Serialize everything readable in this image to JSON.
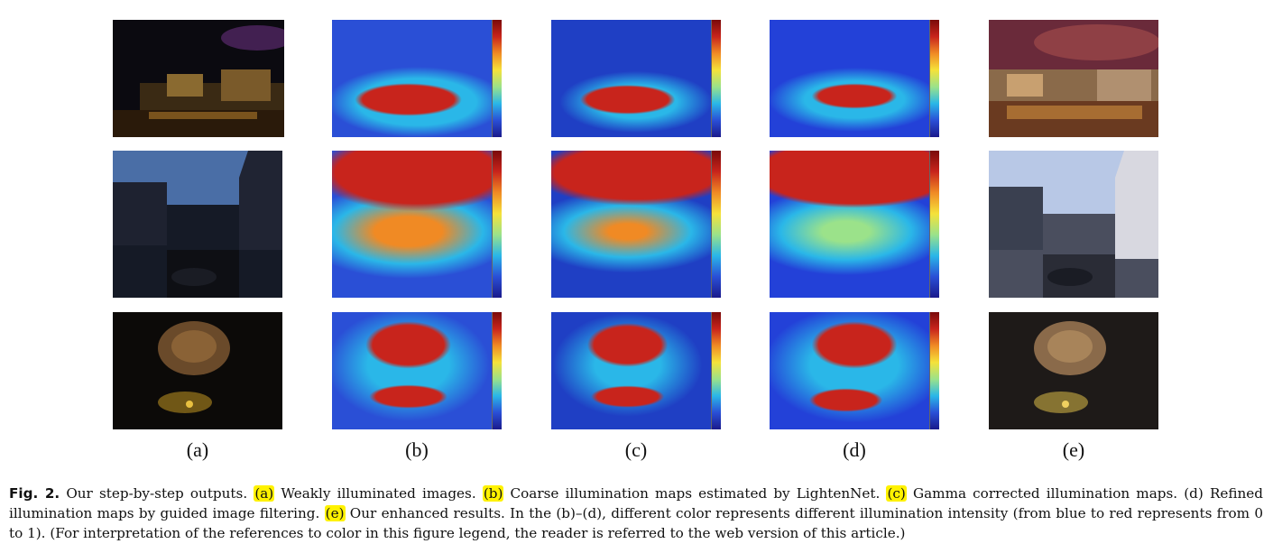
{
  "figure": {
    "column_labels": [
      "(a)",
      "(b)",
      "(c)",
      "(d)",
      "(e)"
    ],
    "colors": {
      "map_low": "#1a1a8c",
      "map_mid": "#2ab7e8",
      "map_high": "#c8241c",
      "highlight": "#fff200"
    }
  },
  "caption": {
    "fig_label": "Fig. 2.",
    "intro": "Our step-by-step outputs.",
    "a_ref": "(a)",
    "a_text": "Weakly illuminated images.",
    "b_ref": "(b)",
    "b_text": "Coarse illumination maps estimated by LightenNet.",
    "c_ref": "(c)",
    "c_text": "Gamma corrected illumination maps. (d) Refined illumination maps by guided image filtering.",
    "e_ref": "(e)",
    "e_text": "Our enhanced results. In the (b)–(d), different color represents different illumination intensity (from blue to red represents from 0 to 1). (For interpretation of the references to color in this figure legend, the reader is referred to the web version of this article.)"
  }
}
